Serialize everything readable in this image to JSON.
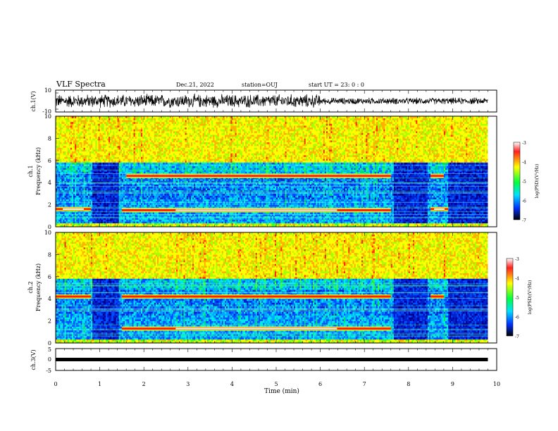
{
  "header": {
    "title": "VLF Spectra",
    "date": "Dec.21, 2022",
    "station": "station=OUJ",
    "start": "start UT = 23: 0 : 0"
  },
  "chart_data": [
    {
      "type": "line",
      "ylabel": "ch.1(V)",
      "ylim": [
        -10,
        10
      ],
      "yticks": [
        "10",
        "-10"
      ],
      "xlim": [
        0,
        10
      ],
      "description_values": {
        "envelope_early": 7.0,
        "envelope_late": 3.5
      }
    },
    {
      "type": "heatmap",
      "ylabel_line1": "ch.1",
      "ylabel_line2": "Frequency (kHz)",
      "ylim": [
        0,
        10
      ],
      "yticks": [
        "0",
        "2",
        "4",
        "6",
        "8",
        "10"
      ],
      "xlim": [
        0,
        10
      ],
      "colorbar": {
        "label": "log(PSD)(V²/Hz)",
        "ticks": [
          "-3",
          "-4",
          "-5",
          "-6",
          "-7"
        ],
        "range": [
          -7,
          -3
        ]
      },
      "bands": [
        {
          "f_kHz": 4.6,
          "t_start": 1.6,
          "t_end": 7.6
        },
        {
          "f_kHz": 1.5,
          "t_start": 1.5,
          "t_end": 7.6
        },
        {
          "f_kHz": 1.6,
          "t_start": 0.0,
          "t_end": 0.8
        },
        {
          "f_kHz": 4.6,
          "t_start": 8.5,
          "t_end": 8.8
        },
        {
          "f_kHz": 1.6,
          "t_start": 8.5,
          "t_end": 8.9
        }
      ]
    },
    {
      "type": "heatmap",
      "ylabel_line1": "ch.2",
      "ylabel_line2": "Frequency (kHz)",
      "ylim": [
        0,
        10
      ],
      "yticks": [
        "0",
        "2",
        "4",
        "6",
        "8",
        "10"
      ],
      "xlim": [
        0,
        10
      ],
      "colorbar": {
        "label": "log(PSD)(V²/Hz)",
        "ticks": [
          "-3",
          "-4",
          "-5",
          "-6",
          "-7"
        ],
        "range": [
          -7,
          -3
        ]
      },
      "bands": [
        {
          "f_kHz": 4.2,
          "t_start": 0.0,
          "t_end": 0.8
        },
        {
          "f_kHz": 4.2,
          "t_start": 1.5,
          "t_end": 7.6
        },
        {
          "f_kHz": 1.3,
          "t_start": 1.5,
          "t_end": 7.6
        },
        {
          "f_kHz": 4.2,
          "t_start": 8.5,
          "t_end": 8.8
        }
      ]
    },
    {
      "type": "line",
      "ylabel": "ch.3(V)",
      "ylim": [
        -5,
        5
      ],
      "yticks": [
        "5",
        "0",
        "-5"
      ],
      "xlim": [
        0,
        10
      ],
      "xlabel": "Time (min)",
      "xticks": [
        "0",
        "1",
        "2",
        "3",
        "4",
        "5",
        "6",
        "7",
        "8",
        "9",
        "10"
      ],
      "level_V": 0,
      "series_t_end": 9.8
    }
  ]
}
